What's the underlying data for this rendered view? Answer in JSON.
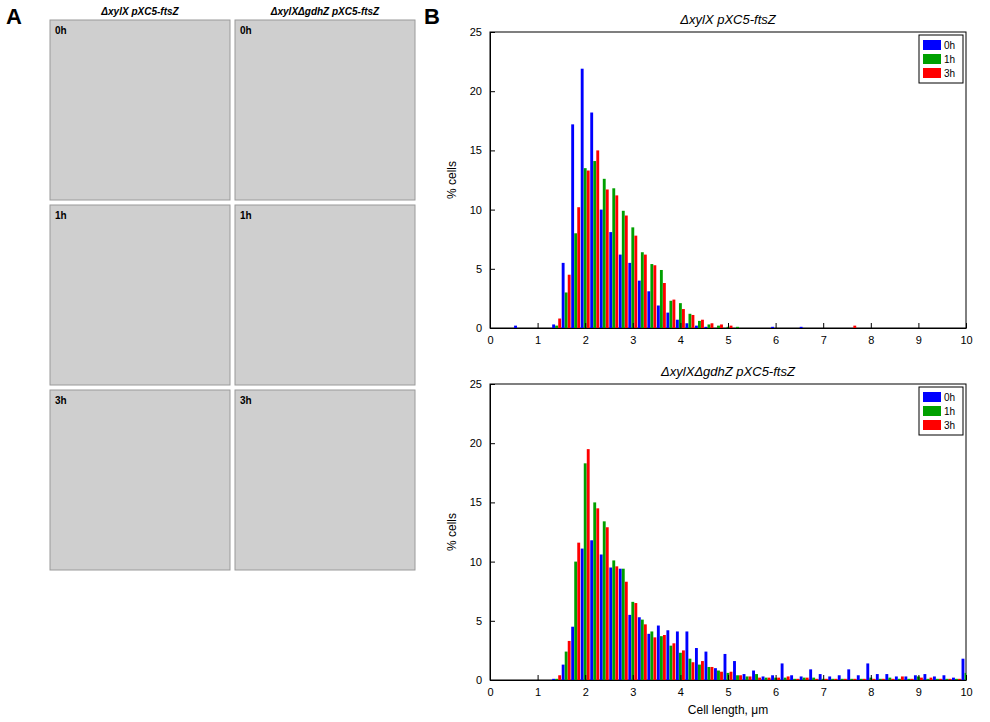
{
  "image_panel": {
    "letter": "A",
    "columns": [
      "ΔxylX pXC5-ftsZ",
      "ΔxylXΔgdhZ pXC5-ftsZ"
    ],
    "rows": [
      "0h",
      "1h",
      "3h"
    ]
  },
  "chart_panel_letter": "B",
  "chart_data": [
    {
      "type": "histogram",
      "title": "ΔxylX pXC5-ftsZ",
      "y_label": "% cells",
      "bins": [
        0.5,
        0.7,
        0.9,
        1.1,
        1.3,
        1.5,
        1.7,
        1.9,
        2.1,
        2.3,
        2.5,
        2.7,
        2.9,
        3.1,
        3.3,
        3.5,
        3.7,
        3.9,
        4.1,
        4.3,
        4.5,
        4.7,
        4.9,
        5.1,
        5.3,
        5.5,
        5.7,
        5.9,
        6.1,
        6.3,
        6.5,
        6.7,
        6.9,
        7.1,
        7.3,
        7.5,
        7.7,
        7.9,
        8.1,
        8.3,
        8.5,
        8.7,
        8.9,
        9.1,
        9.3,
        9.5,
        9.7,
        9.9,
        10.1
      ],
      "series": [
        {
          "name": "0h",
          "color": "#0000ff",
          "values": [
            0.2,
            0,
            0,
            0,
            0.3,
            5.5,
            17.2,
            21.9,
            18.2,
            10,
            8.1,
            6.2,
            5.5,
            4,
            3.1,
            1.9,
            1.3,
            0.7,
            0.4,
            0.2,
            0.1,
            0,
            0,
            0,
            0,
            0,
            0,
            0.1,
            0,
            0,
            0.1,
            0,
            0,
            0,
            0,
            0,
            0,
            0,
            0,
            0,
            0,
            0,
            0,
            0,
            0,
            0,
            0,
            0
          ]
        },
        {
          "name": "1h",
          "color": "#00a000",
          "values": [
            0,
            0,
            0,
            0,
            0.2,
            3,
            8,
            13.5,
            14.1,
            12.6,
            11.8,
            9.9,
            8.5,
            6.4,
            5.4,
            4.9,
            2.3,
            2.1,
            1.2,
            0.6,
            0.3,
            0.2,
            0.1,
            0.1,
            0,
            0,
            0,
            0,
            0,
            0,
            0,
            0,
            0,
            0,
            0,
            0,
            0,
            0,
            0,
            0,
            0,
            0,
            0,
            0,
            0,
            0,
            0,
            0
          ]
        },
        {
          "name": "3h",
          "color": "#ff0000",
          "values": [
            0,
            0,
            0,
            0,
            0.8,
            4.5,
            10.2,
            13.3,
            15,
            11.7,
            11.2,
            9.5,
            7.8,
            6.2,
            5.3,
            3.8,
            2.4,
            1.6,
            1.1,
            0.7,
            0.4,
            0.3,
            0.2,
            0,
            0,
            0,
            0,
            0,
            0,
            0,
            0,
            0,
            0,
            0,
            0,
            0.2,
            0,
            0,
            0,
            0,
            0,
            0,
            0,
            0,
            0,
            0,
            0,
            0
          ]
        }
      ],
      "xlim": [
        0,
        10
      ],
      "xticks": [
        0,
        1,
        2,
        3,
        4,
        5,
        6,
        7,
        8,
        9,
        10
      ],
      "ylim": [
        0,
        25
      ],
      "yticks": [
        0,
        5,
        10,
        15,
        20,
        25
      ],
      "legend": "upper right",
      "grid": false
    },
    {
      "type": "histogram",
      "title": "ΔxylXΔgdhZ pXC5-ftsZ",
      "y_label": "% cells",
      "x_label": "Cell length, μm",
      "bins": [
        0.5,
        0.7,
        0.9,
        1.1,
        1.3,
        1.5,
        1.7,
        1.9,
        2.1,
        2.3,
        2.5,
        2.7,
        2.9,
        3.1,
        3.3,
        3.5,
        3.7,
        3.9,
        4.1,
        4.3,
        4.5,
        4.7,
        4.9,
        5.1,
        5.3,
        5.5,
        5.7,
        5.9,
        6.1,
        6.3,
        6.5,
        6.7,
        6.9,
        7.1,
        7.3,
        7.5,
        7.7,
        7.9,
        8.1,
        8.3,
        8.5,
        8.7,
        8.9,
        9.1,
        9.3,
        9.5,
        9.7,
        9.9,
        10.1
      ],
      "series": [
        {
          "name": "0h",
          "color": "#0000ff",
          "values": [
            0,
            0,
            0,
            0,
            0.1,
            1.3,
            4.5,
            11.1,
            11.8,
            10.6,
            9.5,
            9.4,
            5.5,
            5.3,
            3.9,
            4.6,
            4.2,
            4.1,
            4.1,
            2.7,
            2.4,
            1.0,
            2.2,
            1.6,
            0.5,
            0.8,
            0.3,
            0.4,
            1.4,
            0.4,
            0.3,
            0.9,
            0.5,
            0.3,
            0.4,
            0.9,
            0.4,
            1.4,
            0.5,
            0.5,
            0.3,
            0.3,
            0.4,
            0.5,
            0.3,
            0.4,
            0.2,
            1.8
          ]
        },
        {
          "name": "1h",
          "color": "#00a000",
          "values": [
            0,
            0,
            0,
            0,
            0.1,
            2.4,
            10,
            18.3,
            15,
            13.4,
            10.1,
            9.4,
            6.6,
            5.1,
            4.1,
            3.7,
            2.9,
            2.3,
            1.8,
            1.3,
            1.1,
            0.8,
            0.6,
            0.4,
            0.3,
            0.5,
            0.2,
            0.2,
            0.2,
            0.1,
            0.2,
            0.2,
            0.1,
            0.1,
            0.1,
            0.1,
            0.1,
            0.2,
            0.1,
            0.2,
            0.1,
            0.1,
            0.3,
            0.1,
            0.1,
            0.1,
            0.1,
            0.6
          ]
        },
        {
          "name": "3h",
          "color": "#ff0000",
          "values": [
            0,
            0,
            0,
            0,
            0.4,
            3.3,
            11.6,
            19.5,
            14.5,
            12.9,
            9.6,
            8.3,
            6.5,
            4.7,
            3.6,
            3.8,
            3.1,
            2.5,
            1.5,
            1.6,
            1.1,
            0.7,
            0.7,
            0.4,
            0.3,
            0.2,
            0.2,
            0.2,
            0.3,
            0.1,
            0.2,
            0.1,
            0.1,
            0.1,
            0.1,
            0.1,
            0.1,
            0.1,
            0.1,
            0.1,
            0.3,
            0.1,
            0.2,
            0.2,
            0.1,
            0.1,
            0.1,
            0.5
          ]
        }
      ],
      "xlim": [
        0,
        10
      ],
      "xticks": [
        0,
        1,
        2,
        3,
        4,
        5,
        6,
        7,
        8,
        9,
        10
      ],
      "ylim": [
        0,
        25
      ],
      "yticks": [
        0,
        5,
        10,
        15,
        20,
        25
      ],
      "legend": "upper right",
      "grid": false
    }
  ]
}
